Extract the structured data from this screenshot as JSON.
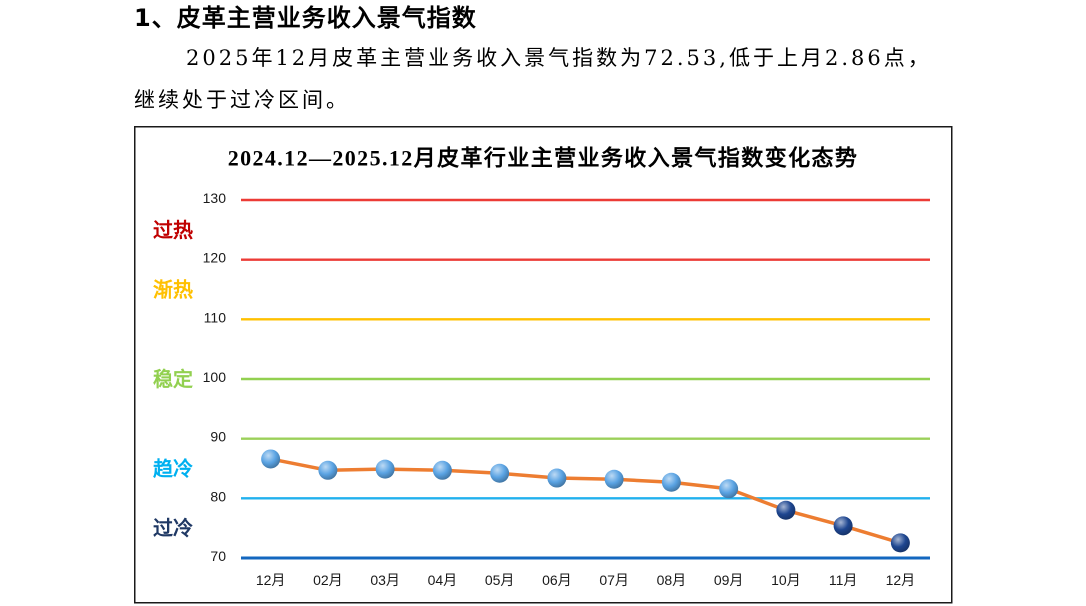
{
  "heading": "1、皮革主营业务收入景气指数",
  "paragraph": "2025年12月皮革主营业务收入景气指数为72.53,低于上月2.86点，继续处于过冷区间。",
  "chart_data": {
    "type": "line",
    "title": "2024.12—2025.12月皮革行业主营业务收入景气指数变化态势",
    "categories": [
      "12月",
      "02月",
      "03月",
      "04月",
      "05月",
      "06月",
      "07月",
      "08月",
      "09月",
      "10月",
      "11月",
      "12月"
    ],
    "series": [
      {
        "values": [
          86.6,
          84.7,
          84.9,
          84.7,
          84.2,
          83.4,
          83.2,
          82.7,
          81.6,
          78.0,
          75.39,
          72.53
        ],
        "color": "#ED7D31"
      }
    ],
    "ylim": [
      70,
      130
    ],
    "yticks": [
      70,
      80,
      90,
      100,
      110,
      120,
      130
    ],
    "legend": "none",
    "gridlines": [
      {
        "value": 130,
        "color": "#EC3B36"
      },
      {
        "value": 120,
        "color": "#EC3B36"
      },
      {
        "value": 110,
        "color": "#FFC000"
      },
      {
        "value": 100,
        "color": "#92D050"
      },
      {
        "value": 90,
        "color": "#9BD05A"
      },
      {
        "value": 80,
        "color": "#21B1EE"
      },
      {
        "value": 70,
        "color": "#1367BF"
      }
    ],
    "zones": [
      {
        "label": "过热",
        "range": [
          120,
          130
        ],
        "color": "#C00000"
      },
      {
        "label": "渐热",
        "range": [
          110,
          120
        ],
        "color": "#FFC000"
      },
      {
        "label": "稳定",
        "range": [
          90,
          110
        ],
        "color": "#92D050"
      },
      {
        "label": "趋冷",
        "range": [
          80,
          90
        ],
        "color": "#00B0F0",
        "marker_color": "#5AA3E3"
      },
      {
        "label": "过冷",
        "range": [
          70,
          80
        ],
        "color": "#1F3864",
        "marker_color": "#1E4690"
      }
    ]
  }
}
